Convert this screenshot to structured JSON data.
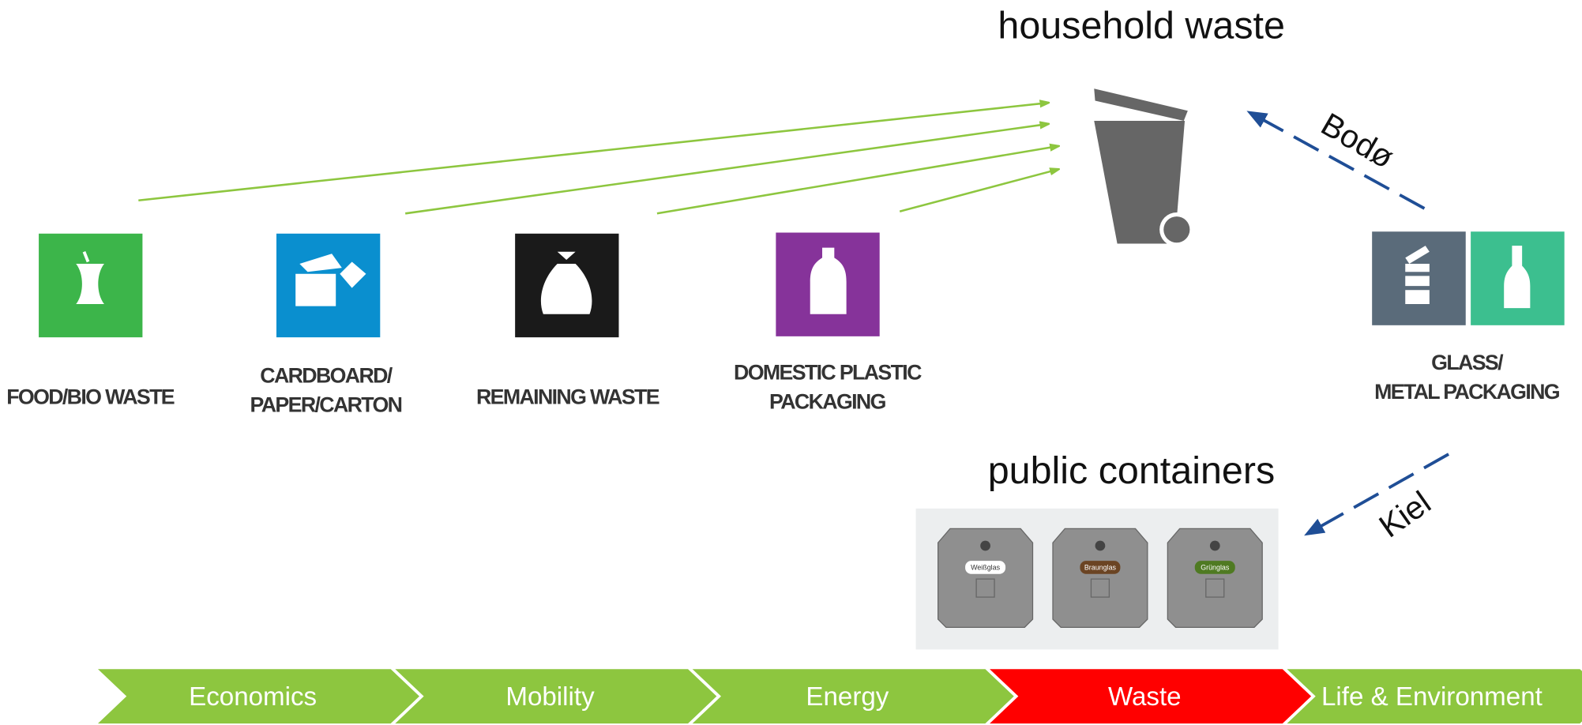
{
  "labels": {
    "household": "household waste",
    "public": "public containers"
  },
  "categories": [
    {
      "lines": [
        "FOOD/BIO WASTE"
      ]
    },
    {
      "lines": [
        "CARDBOARD/",
        "PAPER/CARTON"
      ]
    },
    {
      "lines": [
        "REMAINING WASTE"
      ]
    },
    {
      "lines": [
        "DOMESTIC PLASTIC",
        "PACKAGING"
      ]
    },
    {
      "lines": [
        "GLASS/",
        "METAL PACKAGING"
      ]
    }
  ],
  "routes": [
    {
      "city": "Bodø"
    },
    {
      "city": "Kiel"
    }
  ],
  "containers": [
    "Weißglas",
    "Braunglas",
    "Grünglas"
  ],
  "nav": {
    "items": [
      "Economics",
      "Mobility",
      "Energy",
      "Waste",
      "Life & Environment"
    ],
    "active": 3
  }
}
